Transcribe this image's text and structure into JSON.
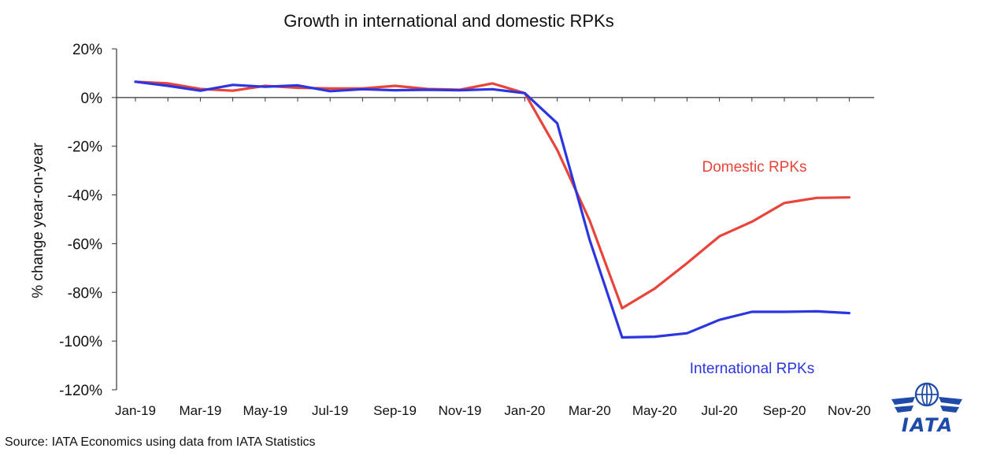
{
  "chart_data": {
    "type": "line",
    "title": "Growth in international and domestic RPKs",
    "xlabel": "",
    "ylabel": "% change year-on-year",
    "ylim": [
      -120,
      20
    ],
    "yticks": [
      20,
      0,
      -20,
      -40,
      -60,
      -80,
      -100,
      -120
    ],
    "ytick_labels": [
      "20%",
      "0%",
      "-20%",
      "-40%",
      "-60%",
      "-80%",
      "-100%",
      "-120%"
    ],
    "categories": [
      "Jan-19",
      "Feb-19",
      "Mar-19",
      "Apr-19",
      "May-19",
      "Jun-19",
      "Jul-19",
      "Aug-19",
      "Sep-19",
      "Oct-19",
      "Nov-19",
      "Dec-19",
      "Jan-20",
      "Feb-20",
      "Mar-20",
      "Apr-20",
      "May-20",
      "Jun-20",
      "Jul-20",
      "Aug-20",
      "Sep-20",
      "Oct-20",
      "Nov-20"
    ],
    "xtick_labels": [
      "Jan-19",
      "Mar-19",
      "May-19",
      "Jul-19",
      "Sep-19",
      "Nov-19",
      "Jan-20",
      "Mar-20",
      "May-20",
      "Jul-20",
      "Sep-20",
      "Nov-20"
    ],
    "series": [
      {
        "name": "Domestic RPKs",
        "color": "#e8443a",
        "values": [
          6.5,
          5.8,
          3.5,
          2.8,
          4.8,
          4.0,
          3.7,
          3.7,
          4.8,
          3.5,
          3.2,
          5.8,
          1.8,
          -21.5,
          -50.5,
          -86.5,
          -78.5,
          -68.0,
          -57.0,
          -51.0,
          -43.3,
          -41.2,
          -41.0
        ]
      },
      {
        "name": "International RPKs",
        "color": "#2b35e0",
        "values": [
          6.5,
          4.8,
          2.8,
          5.2,
          4.4,
          5.0,
          2.6,
          3.4,
          3.0,
          3.2,
          3.0,
          3.4,
          1.8,
          -10.6,
          -58.5,
          -98.5,
          -98.2,
          -96.8,
          -91.3,
          -88.0,
          -88.0,
          -87.8,
          -88.5
        ]
      }
    ],
    "grid": false,
    "legend": "inline labels"
  },
  "source_text": "Source: IATA Economics using data from IATA Statistics",
  "logo": {
    "text": "IATA",
    "color": "#1f4ba8",
    "icon": "globe-wings-logo"
  }
}
